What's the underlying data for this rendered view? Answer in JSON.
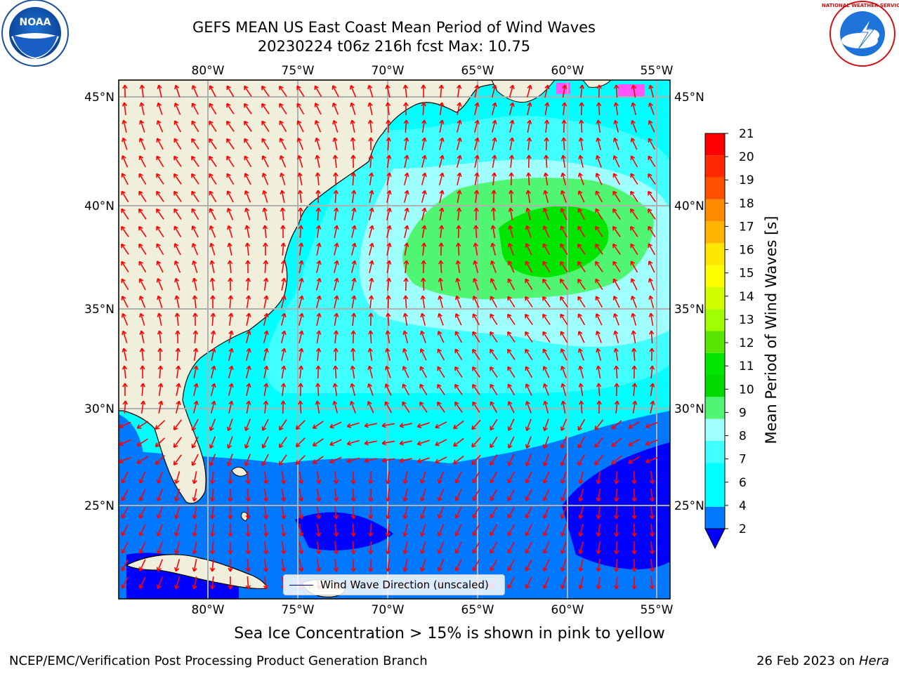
{
  "header": {
    "title_line1": "GEFS MEAN US East Coast Mean Period of Wind Waves",
    "title_line2": "20230224 t06z 216h fcst   Max: 10.75"
  },
  "logos": {
    "noaa_text": "NOAA",
    "nws_text": "NATIONAL WEATHER SERVICE"
  },
  "map": {
    "lon_ticks": [
      "80°W",
      "75°W",
      "70°W",
      "65°W",
      "60°W",
      "55°W"
    ],
    "lat_ticks": [
      "45°N",
      "40°N",
      "35°N",
      "30°N",
      "25°N"
    ],
    "legend_label": "Wind Wave Direction (unscaled)",
    "arrow_color": "#ff0000",
    "land_color": "#efefdc",
    "grid_color": "#b0b0b0"
  },
  "colorbar": {
    "title": "Mean Period of Wind Waves [s]",
    "labels": [
      "21",
      "20",
      "19",
      "18",
      "17",
      "16",
      "15",
      "14",
      "13",
      "12",
      "11",
      "10",
      "9",
      "8",
      "7",
      "6",
      "4",
      "2"
    ],
    "colors_low_to_high": [
      "#0078ff",
      "#00ffff",
      "#00ffff",
      "#40ffff",
      "#a0ffff",
      "#50f572",
      "#00d800",
      "#00e600",
      "#58e600",
      "#a0ff00",
      "#d2ff00",
      "#ffff00",
      "#ffe600",
      "#ffb400",
      "#ff8c00",
      "#ff5000",
      "#ff2800",
      "#ff0000"
    ],
    "extend_color": "#0000ff"
  },
  "notes": {
    "sea_ice": "Sea Ice Concentration > 15% is shown in pink to yellow",
    "credit": "NCEP/EMC/Verification Post Processing Product Generation Branch",
    "date_prefix": "26 Feb 2023 on ",
    "date_machine": "Hera"
  }
}
